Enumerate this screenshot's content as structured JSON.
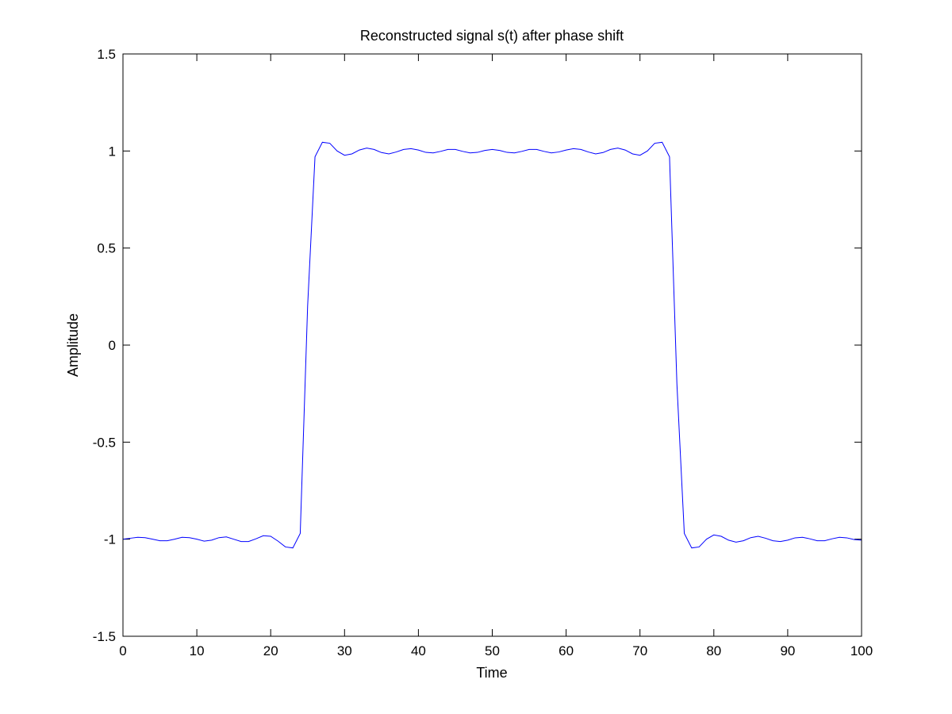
{
  "chart_data": {
    "type": "line",
    "title": "Reconstructed signal s(t) after phase shift",
    "xlabel": "Time",
    "ylabel": "Amplitude",
    "xlim": [
      0,
      100
    ],
    "ylim": [
      -1.5,
      1.5
    ],
    "xticks": [
      0,
      10,
      20,
      30,
      40,
      50,
      60,
      70,
      80,
      90,
      100
    ],
    "yticks": [
      -1.5,
      -1,
      -0.5,
      0,
      0.5,
      1,
      1.5
    ],
    "xtick_labels": [
      "0",
      "10",
      "20",
      "30",
      "40",
      "50",
      "60",
      "70",
      "80",
      "90",
      "100"
    ],
    "ytick_labels": [
      "-1.5",
      "-1",
      "-0.5",
      "0",
      "0.5",
      "1",
      "1.5"
    ],
    "grid": false,
    "line_color": "#0000ff",
    "series": [
      {
        "x": [
          0,
          1,
          2,
          3,
          4,
          5,
          6,
          7,
          8,
          9,
          10,
          11,
          12,
          13,
          14,
          15,
          16,
          17,
          18,
          19,
          20,
          21,
          22,
          23,
          24,
          25,
          26,
          27,
          28,
          29,
          30,
          31,
          32,
          33,
          34,
          35,
          36,
          37,
          38,
          39,
          40,
          41,
          42,
          43,
          44,
          45,
          46,
          47,
          48,
          49,
          50,
          51,
          52,
          53,
          54,
          55,
          56,
          57,
          58,
          59,
          60,
          61,
          62,
          63,
          64,
          65,
          66,
          67,
          68,
          69,
          70,
          71,
          72,
          73,
          74,
          75,
          76,
          77,
          78,
          79,
          80,
          81,
          82,
          83,
          84,
          85,
          86,
          87,
          88,
          89,
          90,
          91,
          92,
          93,
          94,
          95,
          96,
          97,
          98,
          99,
          100
        ],
        "y": [
          -1.0,
          -0.995,
          -0.99,
          -0.992,
          -1.0,
          -1.008,
          -1.008,
          -1.0,
          -0.99,
          -0.992,
          -1.0,
          -1.01,
          -1.005,
          -0.992,
          -0.988,
          -1.0,
          -1.012,
          -1.012,
          -0.998,
          -0.982,
          -0.985,
          -1.01,
          -1.04,
          -1.045,
          -0.97,
          0.2,
          0.97,
          1.045,
          1.04,
          1.0,
          0.978,
          0.985,
          1.005,
          1.015,
          1.008,
          0.992,
          0.985,
          0.995,
          1.008,
          1.012,
          1.005,
          0.993,
          0.99,
          0.998,
          1.008,
          1.008,
          0.998,
          0.99,
          0.993,
          1.003,
          1.008,
          1.003,
          0.993,
          0.99,
          0.998,
          1.008,
          1.008,
          0.998,
          0.99,
          0.995,
          1.005,
          1.012,
          1.008,
          0.995,
          0.985,
          0.992,
          1.008,
          1.015,
          1.005,
          0.985,
          0.978,
          1.0,
          1.04,
          1.045,
          0.97,
          -0.2,
          -0.97,
          -1.045,
          -1.04,
          -1.0,
          -0.978,
          -0.985,
          -1.005,
          -1.015,
          -1.008,
          -0.992,
          -0.985,
          -0.995,
          -1.008,
          -1.012,
          -1.005,
          -0.993,
          -0.99,
          -0.998,
          -1.008,
          -1.008,
          -0.998,
          -0.99,
          -0.993,
          -1.002,
          -1.005
        ]
      }
    ]
  }
}
